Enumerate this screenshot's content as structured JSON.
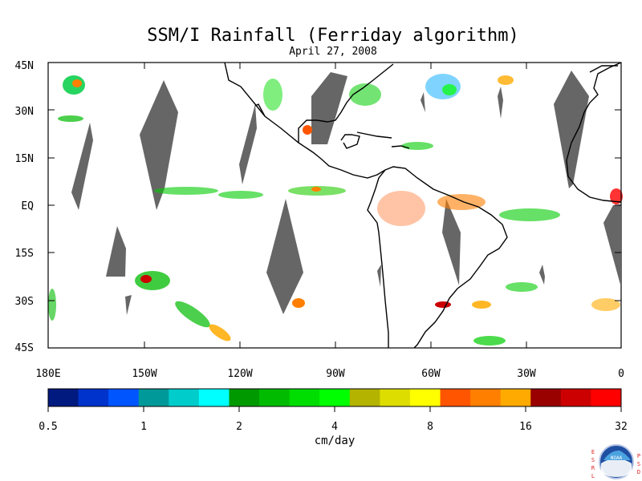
{
  "title": "SSM/I Rainfall (Ferriday algorithm)",
  "subtitle": "April 27, 2008",
  "map": {
    "lat_labels": [
      "45N",
      "30N",
      "15N",
      "EQ",
      "15S",
      "30S",
      "45S"
    ],
    "lon_labels": [
      "180E",
      "150W",
      "120W",
      "90W",
      "60W",
      "30W",
      "0"
    ],
    "land_color": "#ffffff",
    "no_data_color": "#666666",
    "coastline_color": "#000000"
  },
  "colorbar": {
    "unit": "cm/day",
    "tick_labels": [
      "0.5",
      "1",
      "2",
      "4",
      "8",
      "16",
      "32"
    ],
    "colors": [
      "#001a80",
      "#0033cc",
      "#0055ff",
      "#009999",
      "#00cccc",
      "#00ffff",
      "#009900",
      "#00bb00",
      "#00dd00",
      "#00ff00",
      "#b3b300",
      "#dddd00",
      "#ffff00",
      "#ff5500",
      "#ff7f00",
      "#ffaa00",
      "#990000",
      "#cc0000",
      "#ff0000"
    ]
  },
  "logo": {
    "left_text": "ESRL",
    "right_text": "PSD",
    "center_text": "NOAA"
  }
}
